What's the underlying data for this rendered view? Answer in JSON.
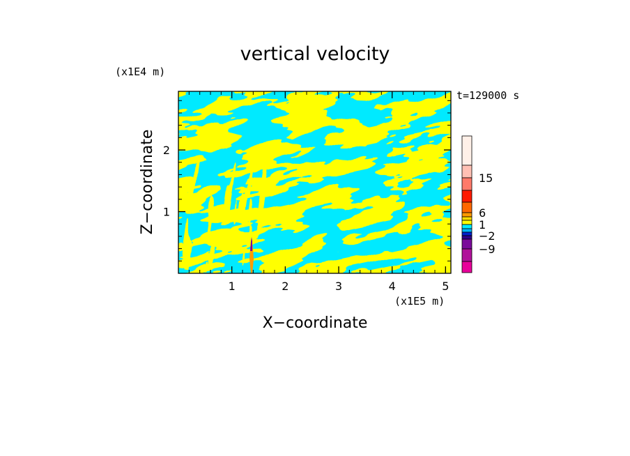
{
  "chart_data": {
    "type": "heatmap",
    "title": "vertical velocity",
    "xlabel": "X−coordinate",
    "ylabel": "Z−coordinate",
    "x_unit_label": "(x1E5 m)",
    "y_unit_label": "(x1E4 m)",
    "time_label": "t=129000 s",
    "xlim": [
      0,
      5.1
    ],
    "ylim": [
      0,
      2.95
    ],
    "x_ticks": [
      {
        "value": 1,
        "label": "1"
      },
      {
        "value": 2,
        "label": "2"
      },
      {
        "value": 3,
        "label": "3"
      },
      {
        "value": 4,
        "label": "4"
      },
      {
        "value": 5,
        "label": "5"
      }
    ],
    "y_ticks": [
      {
        "value": 1,
        "label": "1"
      },
      {
        "value": 2,
        "label": "2"
      }
    ],
    "colorbar": {
      "labeled_levels": [
        "15",
        "6",
        "1",
        "−2",
        "−9"
      ],
      "bands_bottom_to_top": [
        "#e8009a",
        "#b0129a",
        "#7a0a9a",
        "#30008a",
        "#0022cc",
        "#00b4ff",
        "#00eaff",
        "#ffff00",
        "#ffdc00",
        "#ff9a00",
        "#ff6800",
        "#ff1a00",
        "#ff7a6a",
        "#ffc0b4",
        "#fff0e8"
      ]
    },
    "field_colors": {
      "positive": "#ffff00",
      "negative": "#00eaff",
      "extreme_negative": "#7a0a9a",
      "extreme_positive": "#ff9a00"
    }
  }
}
